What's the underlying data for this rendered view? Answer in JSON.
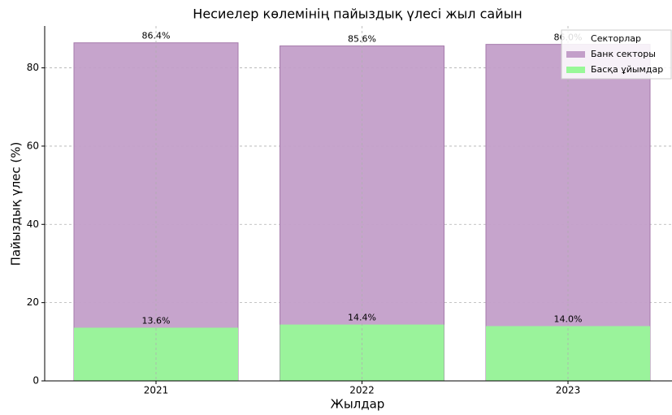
{
  "chart_data": {
    "type": "bar",
    "barmode": "overlay",
    "title": "Несиелер көлемінің пайыздық үлесі жыл сайын",
    "xlabel": "Жылдар",
    "ylabel": "Пайыздық үлес (%)",
    "categories": [
      "2021",
      "2022",
      "2023"
    ],
    "series": [
      {
        "name": "Банк секторы",
        "color": "#c39fc9",
        "values": [
          86.4,
          85.6,
          86.0
        ],
        "value_labels": [
          "86.4%",
          "85.6%",
          "86.0%"
        ]
      },
      {
        "name": "Басқа ұйымдар",
        "color": "#98f898",
        "values": [
          13.6,
          14.4,
          14.0
        ],
        "value_labels": [
          "13.6%",
          "14.4%",
          "14.0%"
        ]
      }
    ],
    "ylim": [
      0,
      90.7
    ],
    "yticks": [
      0,
      20,
      40,
      60,
      80
    ],
    "grid": true,
    "legend": {
      "title": "Секторлар",
      "position": "upper right"
    }
  }
}
